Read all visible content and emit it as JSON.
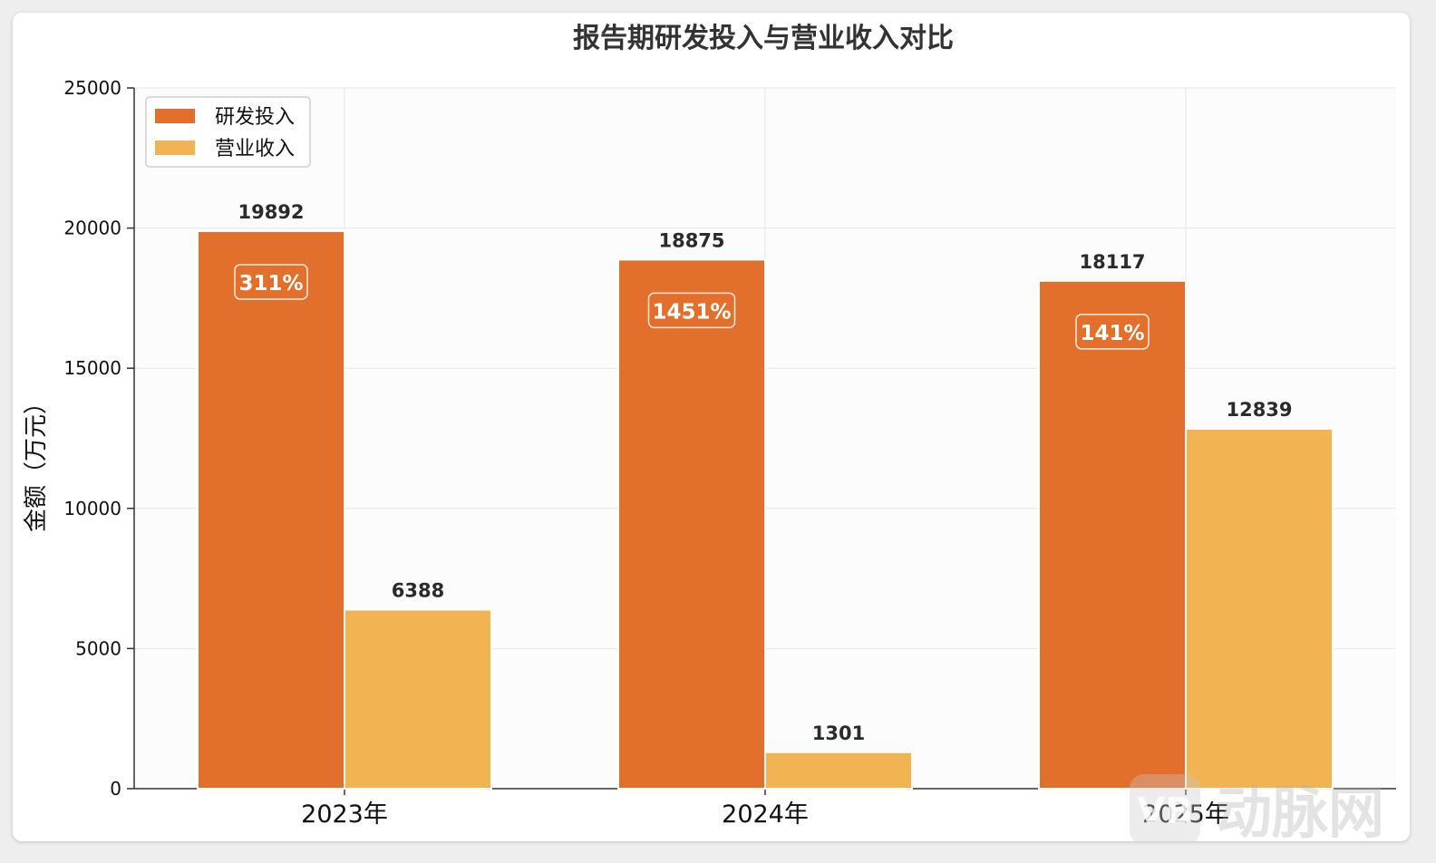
{
  "chart_data": {
    "type": "bar",
    "title": "报告期研发投入与营业收入对比",
    "ylabel": "金额（万元）",
    "xlabel": "",
    "categories": [
      "2023年",
      "2024年",
      "2025年"
    ],
    "ylim": [
      0,
      25000
    ],
    "yticks": [
      0,
      5000,
      10000,
      15000,
      20000,
      25000
    ],
    "grid": true,
    "legend_position": "top-left",
    "series": [
      {
        "name": "研发投入",
        "values": [
          19892,
          18875,
          18117
        ],
        "color": "#e2702c"
      },
      {
        "name": "营业收入",
        "values": [
          6388,
          1301,
          12839
        ],
        "color": "#f2b352"
      }
    ],
    "annotations": [
      "311%",
      "1451%",
      "141%"
    ]
  },
  "watermark": {
    "badge_icon": "vb-logo-icon",
    "text": "动脉网"
  }
}
